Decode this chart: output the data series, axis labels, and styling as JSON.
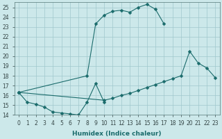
{
  "xlabel": "Humidex (Indice chaleur)",
  "bg_color": "#cce8ea",
  "grid_color": "#a0c8cc",
  "line_color": "#1a6b6b",
  "xlim": [
    -0.5,
    23.5
  ],
  "ylim": [
    14,
    25.5
  ],
  "xticks": [
    0,
    1,
    2,
    3,
    4,
    5,
    6,
    7,
    8,
    9,
    10,
    11,
    12,
    13,
    14,
    15,
    16,
    17,
    18,
    19,
    20,
    21,
    22,
    23
  ],
  "yticks": [
    14,
    15,
    16,
    17,
    18,
    19,
    20,
    21,
    22,
    23,
    24,
    25
  ],
  "line1_x": [
    0,
    1,
    2,
    3,
    4,
    5,
    6,
    7,
    8,
    9,
    10
  ],
  "line1_y": [
    16.3,
    15.3,
    15.1,
    14.8,
    14.3,
    14.2,
    14.1,
    14.0,
    15.3,
    17.2,
    15.3
  ],
  "line2_x": [
    0,
    8,
    9,
    10,
    11,
    12,
    13,
    14,
    15,
    16,
    17
  ],
  "line2_y": [
    16.3,
    18.0,
    23.3,
    24.2,
    24.6,
    24.7,
    24.5,
    25.0,
    25.3,
    24.8,
    23.3
  ],
  "line3_x": [
    0,
    10,
    11,
    12,
    13,
    14,
    15,
    16,
    17,
    18,
    19,
    20,
    21,
    22,
    23
  ],
  "line3_y": [
    16.3,
    15.5,
    15.7,
    16.0,
    16.2,
    16.5,
    16.8,
    17.1,
    17.4,
    17.7,
    18.0,
    20.5,
    19.3,
    18.8,
    17.8
  ],
  "marker_size": 2.5
}
